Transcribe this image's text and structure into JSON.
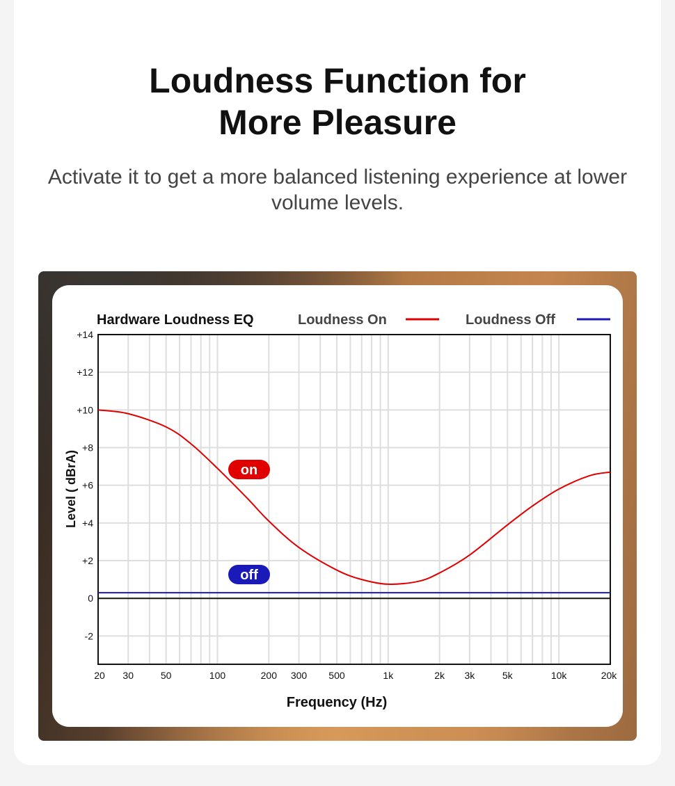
{
  "header": {
    "title_line1": "Loudness Function for",
    "title_line2": "More Pleasure",
    "subtitle": "Activate it to get a more balanced listening experience at lower volume levels."
  },
  "chart_data": {
    "type": "line",
    "title": "Hardware Loudness EQ",
    "xlabel": "Frequency (Hz)",
    "ylabel": "Level ( dBrA)",
    "x_scale": "log",
    "xlim": [
      20,
      20000
    ],
    "ylim": [
      -3.5,
      14
    ],
    "x_ticks": [
      {
        "value": 20,
        "label": "20"
      },
      {
        "value": 30,
        "label": "30"
      },
      {
        "value": 50,
        "label": "50"
      },
      {
        "value": 100,
        "label": "100"
      },
      {
        "value": 200,
        "label": "200"
      },
      {
        "value": 300,
        "label": "300"
      },
      {
        "value": 500,
        "label": "500"
      },
      {
        "value": 1000,
        "label": "1k"
      },
      {
        "value": 2000,
        "label": "2k"
      },
      {
        "value": 3000,
        "label": "3k"
      },
      {
        "value": 5000,
        "label": "5k"
      },
      {
        "value": 10000,
        "label": "10k"
      },
      {
        "value": 20000,
        "label": "20k"
      }
    ],
    "y_ticks": [
      {
        "value": 14,
        "label": "+14"
      },
      {
        "value": 12,
        "label": "+12"
      },
      {
        "value": 10,
        "label": "+10"
      },
      {
        "value": 8,
        "label": "+8"
      },
      {
        "value": 6,
        "label": "+6"
      },
      {
        "value": 4,
        "label": "+4"
      },
      {
        "value": 2,
        "label": "+2"
      },
      {
        "value": 0,
        "label": "0"
      },
      {
        "value": -2,
        "label": "-2"
      }
    ],
    "grid": true,
    "legend_position": "top",
    "series": [
      {
        "name": "Loudness On",
        "color": "#e00000",
        "badge": "on",
        "x": [
          20,
          30,
          50,
          70,
          100,
          150,
          200,
          300,
          500,
          700,
          1000,
          1500,
          2000,
          3000,
          5000,
          7000,
          10000,
          15000,
          20000
        ],
        "y": [
          10.0,
          9.8,
          9.1,
          8.2,
          6.9,
          5.3,
          4.1,
          2.7,
          1.5,
          1.0,
          0.75,
          0.9,
          1.35,
          2.3,
          3.9,
          4.9,
          5.8,
          6.5,
          6.7
        ]
      },
      {
        "name": "Loudness Off",
        "color": "#1a1ab8",
        "badge": "off",
        "x": [
          20,
          20000
        ],
        "y": [
          0.3,
          0.3
        ]
      }
    ]
  }
}
